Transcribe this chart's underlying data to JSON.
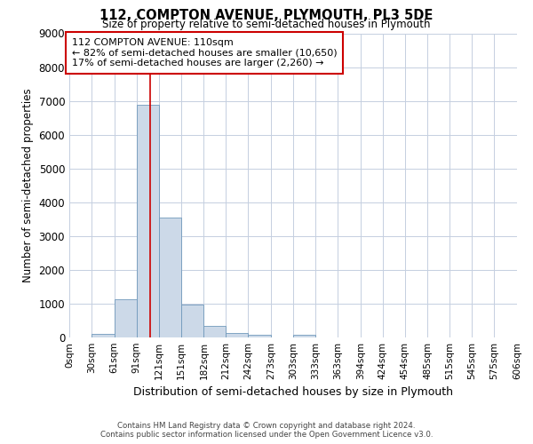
{
  "title": "112, COMPTON AVENUE, PLYMOUTH, PL3 5DE",
  "subtitle": "Size of property relative to semi-detached houses in Plymouth",
  "xlabel": "Distribution of semi-detached houses by size in Plymouth",
  "ylabel": "Number of semi-detached properties",
  "property_size": 110,
  "annotation_line1": "112 COMPTON AVENUE: 110sqm",
  "annotation_line2": "← 82% of semi-detached houses are smaller (10,650)",
  "annotation_line3": "17% of semi-detached houses are larger (2,260) →",
  "footer_line1": "Contains HM Land Registry data © Crown copyright and database right 2024.",
  "footer_line2": "Contains public sector information licensed under the Open Government Licence v3.0.",
  "bar_color": "#ccd9e8",
  "bar_edge_color": "#7099bb",
  "red_line_color": "#cc0000",
  "annotation_box_color": "#cc0000",
  "grid_color": "#c5cfe0",
  "background_color": "#ffffff",
  "bin_edges": [
    0,
    30,
    61,
    91,
    121,
    151,
    182,
    212,
    242,
    273,
    303,
    333,
    363,
    394,
    424,
    454,
    485,
    515,
    545,
    575,
    606
  ],
  "bin_labels": [
    "0sqm",
    "30sqm",
    "61sqm",
    "91sqm",
    "121sqm",
    "151sqm",
    "182sqm",
    "212sqm",
    "242sqm",
    "273sqm",
    "303sqm",
    "333sqm",
    "363sqm",
    "394sqm",
    "424sqm",
    "454sqm",
    "485sqm",
    "515sqm",
    "545sqm",
    "575sqm",
    "606sqm"
  ],
  "bar_heights": [
    0,
    100,
    1130,
    6880,
    3550,
    960,
    330,
    120,
    70,
    0,
    70,
    0,
    0,
    0,
    0,
    0,
    0,
    0,
    0,
    0
  ],
  "ylim": [
    0,
    9000
  ],
  "yticks": [
    0,
    1000,
    2000,
    3000,
    4000,
    5000,
    6000,
    7000,
    8000,
    9000
  ]
}
